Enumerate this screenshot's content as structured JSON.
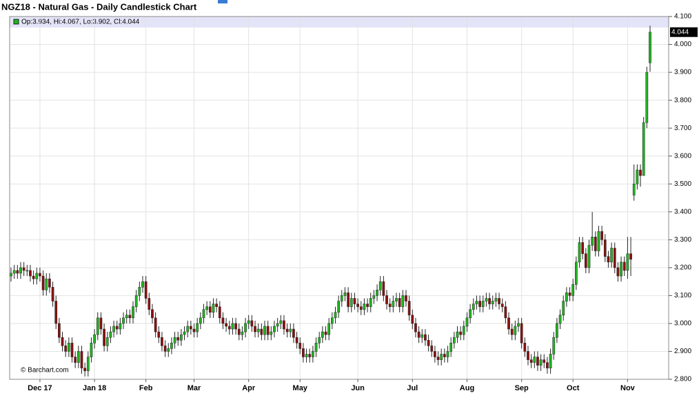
{
  "chart_data": {
    "type": "candlestick",
    "title": "NGZ18 - Natural Gas - Daily Candlestick Chart",
    "legend_text": "Op:3.934, Hi:4.067, Lo:3.902, Cl:4.044",
    "watermark": "© Barchart.com",
    "up_color": "#22b422",
    "down_color": "#8b1010",
    "grid": true,
    "ylim": [
      2.8,
      4.1
    ],
    "yticks": [
      {
        "value": 2.8,
        "label": "2.800"
      },
      {
        "value": 2.9,
        "label": "2.900"
      },
      {
        "value": 3.0,
        "label": "3.000"
      },
      {
        "value": 3.1,
        "label": "3.100"
      },
      {
        "value": 3.2,
        "label": "3.200"
      },
      {
        "value": 3.3,
        "label": "3.300"
      },
      {
        "value": 3.4,
        "label": "3.400"
      },
      {
        "value": 3.5,
        "label": "3.500"
      },
      {
        "value": 3.6,
        "label": "3.600"
      },
      {
        "value": 3.7,
        "label": "3.700"
      },
      {
        "value": 3.8,
        "label": "3.800"
      },
      {
        "value": 3.9,
        "label": "3.900"
      },
      {
        "value": 4.0,
        "label": "4.000"
      },
      {
        "value": 4.1,
        "label": "4.100"
      }
    ],
    "categories": [
      null,
      null,
      null,
      null,
      null,
      null,
      null,
      null,
      null,
      "Dec 17",
      null,
      null,
      null,
      null,
      null,
      null,
      null,
      null,
      null,
      null,
      null,
      null,
      null,
      null,
      null,
      null,
      "Jan 18",
      null,
      null,
      null,
      null,
      null,
      null,
      null,
      null,
      null,
      null,
      null,
      null,
      null,
      null,
      null,
      "Feb",
      null,
      null,
      null,
      null,
      null,
      null,
      null,
      null,
      null,
      null,
      null,
      null,
      null,
      null,
      "Mar",
      null,
      null,
      null,
      null,
      null,
      null,
      null,
      null,
      null,
      null,
      null,
      null,
      null,
      null,
      null,
      null,
      "Apr",
      null,
      null,
      null,
      null,
      null,
      null,
      null,
      null,
      null,
      null,
      null,
      null,
      null,
      null,
      null,
      "May",
      null,
      null,
      null,
      null,
      null,
      null,
      null,
      null,
      null,
      null,
      null,
      null,
      null,
      null,
      null,
      null,
      null,
      "Jun",
      null,
      null,
      null,
      null,
      null,
      null,
      null,
      null,
      null,
      null,
      null,
      null,
      null,
      null,
      null,
      null,
      "Jul",
      null,
      null,
      null,
      null,
      null,
      null,
      null,
      null,
      null,
      null,
      null,
      null,
      null,
      null,
      null,
      null,
      "Aug",
      null,
      null,
      null,
      null,
      null,
      null,
      null,
      null,
      null,
      null,
      null,
      null,
      null,
      null,
      null,
      null,
      "Sep",
      null,
      null,
      null,
      null,
      null,
      null,
      null,
      null,
      null,
      null,
      null,
      null,
      null,
      null,
      null,
      "Oct",
      null,
      null,
      null,
      null,
      null,
      null,
      null,
      null,
      null,
      null,
      null,
      null,
      null,
      null,
      null,
      null,
      "Nov",
      null,
      null,
      null,
      null,
      null,
      null,
      null
    ],
    "open": [
      3.17,
      3.18,
      3.19,
      3.18,
      3.2,
      3.19,
      3.19,
      3.17,
      3.16,
      3.18,
      3.17,
      3.12,
      3.16,
      3.13,
      3.08,
      3.0,
      2.95,
      2.92,
      2.9,
      2.93,
      2.88,
      2.86,
      2.9,
      2.84,
      2.83,
      2.88,
      2.93,
      2.96,
      3.02,
      2.98,
      2.92,
      2.95,
      2.97,
      2.99,
      2.98,
      3.0,
      3.02,
      3.03,
      3.02,
      3.06,
      3.1,
      3.13,
      3.15,
      3.09,
      3.05,
      3.02,
      2.97,
      2.95,
      2.92,
      2.9,
      2.91,
      2.93,
      2.95,
      2.94,
      2.96,
      2.97,
      2.99,
      2.98,
      2.97,
      3.0,
      3.02,
      3.05,
      3.06,
      3.04,
      3.07,
      3.06,
      3.02,
      3.0,
      2.99,
      2.98,
      3.0,
      2.98,
      2.96,
      2.97,
      3.0,
      3.01,
      2.99,
      2.97,
      2.98,
      2.96,
      2.99,
      2.96,
      2.97,
      2.99,
      3.0,
      3.01,
      2.98,
      2.97,
      2.98,
      2.95,
      2.93,
      2.91,
      2.88,
      2.89,
      2.88,
      2.9,
      2.93,
      2.95,
      2.97,
      2.96,
      3.0,
      3.02,
      3.04,
      3.08,
      3.1,
      3.11,
      3.06,
      3.09,
      3.07,
      3.06,
      3.05,
      3.07,
      3.06,
      3.09,
      3.1,
      3.12,
      3.15,
      3.1,
      3.07,
      3.06,
      3.08,
      3.09,
      3.06,
      3.1,
      3.08,
      3.03,
      3.0,
      2.97,
      2.95,
      2.96,
      2.94,
      2.92,
      2.9,
      2.88,
      2.87,
      2.89,
      2.88,
      2.9,
      2.93,
      2.95,
      2.97,
      2.96,
      2.99,
      3.02,
      3.05,
      3.07,
      3.08,
      3.06,
      3.08,
      3.09,
      3.07,
      3.08,
      3.09,
      3.07,
      3.06,
      3.02,
      2.98,
      2.96,
      2.99,
      3.0,
      2.93,
      2.9,
      2.87,
      2.86,
      2.88,
      2.85,
      2.87,
      2.86,
      2.84,
      2.89,
      2.95,
      3.0,
      3.03,
      3.08,
      3.11,
      3.1,
      3.14,
      3.22,
      3.29,
      3.25,
      3.2,
      3.28,
      3.31,
      3.26,
      3.33,
      3.3,
      3.24,
      3.22,
      3.27,
      3.2,
      3.17,
      3.22,
      3.19,
      3.25,
      3.46,
      3.5,
      3.55,
      3.53,
      3.72,
      3.934
    ],
    "high": [
      3.2,
      3.21,
      3.21,
      3.22,
      3.22,
      3.21,
      3.21,
      3.19,
      3.2,
      3.2,
      3.19,
      3.18,
      3.18,
      3.15,
      3.1,
      3.02,
      2.97,
      2.94,
      2.95,
      2.95,
      2.9,
      2.92,
      2.92,
      2.86,
      2.9,
      2.95,
      2.98,
      3.04,
      3.04,
      3.0,
      2.97,
      2.99,
      3.01,
      3.01,
      3.02,
      3.04,
      3.05,
      3.05,
      3.08,
      3.12,
      3.15,
      3.17,
      3.17,
      3.11,
      3.07,
      3.04,
      2.99,
      2.97,
      2.94,
      2.93,
      2.95,
      2.97,
      2.97,
      2.98,
      2.99,
      3.01,
      3.01,
      3.0,
      3.02,
      3.04,
      3.07,
      3.08,
      3.08,
      3.09,
      3.09,
      3.08,
      3.04,
      3.02,
      3.01,
      3.02,
      3.02,
      3.0,
      2.99,
      3.02,
      3.03,
      3.03,
      3.01,
      3.0,
      3.0,
      3.01,
      3.01,
      2.99,
      3.01,
      3.02,
      3.03,
      3.03,
      3.0,
      3.0,
      3.0,
      2.97,
      2.95,
      2.93,
      2.91,
      2.91,
      2.92,
      2.95,
      2.97,
      2.99,
      2.99,
      3.02,
      3.04,
      3.06,
      3.1,
      3.12,
      3.13,
      3.13,
      3.11,
      3.11,
      3.09,
      3.08,
      3.09,
      3.09,
      3.11,
      3.12,
      3.14,
      3.17,
      3.17,
      3.12,
      3.09,
      3.1,
      3.11,
      3.11,
      3.12,
      3.12,
      3.1,
      3.05,
      3.02,
      2.99,
      2.98,
      2.98,
      2.96,
      2.94,
      2.92,
      2.9,
      2.91,
      2.91,
      2.92,
      2.95,
      2.97,
      2.99,
      2.99,
      3.01,
      3.04,
      3.07,
      3.09,
      3.1,
      3.1,
      3.1,
      3.11,
      3.11,
      3.1,
      3.11,
      3.11,
      3.09,
      3.08,
      3.04,
      3.0,
      3.01,
      3.02,
      3.02,
      2.95,
      2.92,
      2.89,
      2.9,
      2.9,
      2.89,
      2.89,
      2.88,
      2.91,
      2.97,
      3.02,
      3.05,
      3.1,
      3.13,
      3.13,
      3.16,
      3.24,
      3.31,
      3.31,
      3.27,
      3.3,
      3.4,
      3.33,
      3.35,
      3.35,
      3.32,
      3.26,
      3.29,
      3.29,
      3.22,
      3.24,
      3.24,
      3.31,
      3.31,
      3.57,
      3.57,
      3.57,
      3.74,
      3.92,
      4.067
    ],
    "low": [
      3.15,
      3.16,
      3.16,
      3.16,
      3.17,
      3.17,
      3.15,
      3.14,
      3.14,
      3.15,
      3.1,
      3.1,
      3.11,
      3.06,
      2.98,
      2.93,
      2.9,
      2.88,
      2.88,
      2.86,
      2.84,
      2.84,
      2.82,
      2.81,
      2.81,
      2.86,
      2.91,
      2.94,
      2.96,
      2.9,
      2.9,
      2.93,
      2.95,
      2.96,
      2.96,
      2.98,
      3.0,
      3.0,
      3.0,
      3.04,
      3.08,
      3.11,
      3.07,
      3.03,
      3.0,
      2.95,
      2.93,
      2.9,
      2.88,
      2.88,
      2.89,
      2.91,
      2.92,
      2.92,
      2.94,
      2.95,
      2.96,
      2.95,
      2.95,
      2.98,
      3.0,
      3.03,
      3.02,
      3.02,
      3.04,
      3.0,
      2.98,
      2.97,
      2.96,
      2.96,
      2.96,
      2.94,
      2.94,
      2.95,
      2.98,
      2.97,
      2.95,
      2.95,
      2.94,
      2.94,
      2.94,
      2.94,
      2.95,
      2.97,
      2.98,
      2.96,
      2.95,
      2.95,
      2.93,
      2.91,
      2.89,
      2.86,
      2.86,
      2.86,
      2.86,
      2.88,
      2.91,
      2.93,
      2.94,
      2.94,
      2.98,
      3.0,
      3.02,
      3.06,
      3.08,
      3.04,
      3.04,
      3.05,
      3.04,
      3.03,
      3.03,
      3.04,
      3.04,
      3.07,
      3.08,
      3.1,
      3.08,
      3.05,
      3.04,
      3.04,
      3.06,
      3.04,
      3.04,
      3.06,
      3.01,
      2.98,
      2.95,
      2.93,
      2.93,
      2.92,
      2.9,
      2.88,
      2.86,
      2.85,
      2.85,
      2.86,
      2.86,
      2.88,
      2.91,
      2.93,
      2.94,
      2.94,
      2.97,
      3.0,
      3.03,
      3.05,
      3.04,
      3.04,
      3.06,
      3.05,
      3.05,
      3.06,
      3.05,
      3.04,
      3.0,
      2.96,
      2.94,
      2.94,
      2.97,
      2.91,
      2.88,
      2.85,
      2.84,
      2.84,
      2.83,
      2.83,
      2.84,
      2.82,
      2.82,
      2.87,
      2.93,
      2.98,
      3.01,
      3.06,
      3.08,
      3.08,
      3.12,
      3.2,
      3.23,
      3.18,
      3.18,
      3.26,
      3.24,
      3.24,
      3.28,
      3.22,
      3.2,
      3.2,
      3.18,
      3.15,
      3.15,
      3.17,
      3.16,
      3.17,
      3.44,
      3.48,
      3.49,
      3.53,
      3.7,
      3.902
    ],
    "close": [
      3.18,
      3.19,
      3.18,
      3.2,
      3.19,
      3.19,
      3.17,
      3.16,
      3.18,
      3.17,
      3.12,
      3.16,
      3.13,
      3.08,
      3.0,
      2.95,
      2.92,
      2.9,
      2.93,
      2.88,
      2.86,
      2.9,
      2.84,
      2.83,
      2.88,
      2.93,
      2.96,
      3.02,
      2.98,
      2.92,
      2.95,
      2.97,
      2.99,
      2.98,
      3.0,
      3.02,
      3.03,
      3.02,
      3.06,
      3.1,
      3.13,
      3.15,
      3.09,
      3.05,
      3.02,
      2.97,
      2.95,
      2.92,
      2.9,
      2.91,
      2.93,
      2.95,
      2.94,
      2.96,
      2.97,
      2.99,
      2.98,
      2.97,
      3.0,
      3.02,
      3.05,
      3.06,
      3.04,
      3.07,
      3.06,
      3.02,
      3.0,
      2.99,
      2.98,
      3.0,
      2.98,
      2.96,
      2.97,
      3.0,
      3.01,
      2.99,
      2.97,
      2.98,
      2.96,
      2.99,
      2.96,
      2.97,
      2.99,
      3.0,
      3.01,
      2.98,
      2.97,
      2.98,
      2.95,
      2.93,
      2.91,
      2.88,
      2.89,
      2.88,
      2.9,
      2.93,
      2.95,
      2.97,
      2.96,
      3.0,
      3.02,
      3.04,
      3.08,
      3.1,
      3.11,
      3.06,
      3.09,
      3.07,
      3.06,
      3.05,
      3.07,
      3.06,
      3.09,
      3.1,
      3.12,
      3.15,
      3.1,
      3.07,
      3.06,
      3.08,
      3.09,
      3.06,
      3.1,
      3.08,
      3.03,
      3.0,
      2.97,
      2.95,
      2.96,
      2.94,
      2.92,
      2.9,
      2.88,
      2.87,
      2.89,
      2.88,
      2.9,
      2.93,
      2.95,
      2.97,
      2.96,
      2.99,
      3.02,
      3.05,
      3.07,
      3.08,
      3.06,
      3.08,
      3.09,
      3.07,
      3.08,
      3.09,
      3.07,
      3.06,
      3.02,
      2.98,
      2.96,
      2.99,
      3.0,
      2.93,
      2.9,
      2.87,
      2.86,
      2.88,
      2.85,
      2.87,
      2.86,
      2.84,
      2.89,
      2.95,
      3.0,
      3.03,
      3.08,
      3.11,
      3.1,
      3.14,
      3.22,
      3.29,
      3.25,
      3.2,
      3.28,
      3.31,
      3.26,
      3.33,
      3.3,
      3.24,
      3.22,
      3.27,
      3.2,
      3.17,
      3.22,
      3.19,
      3.25,
      3.23,
      3.5,
      3.55,
      3.53,
      3.72,
      3.9,
      4.044
    ]
  }
}
